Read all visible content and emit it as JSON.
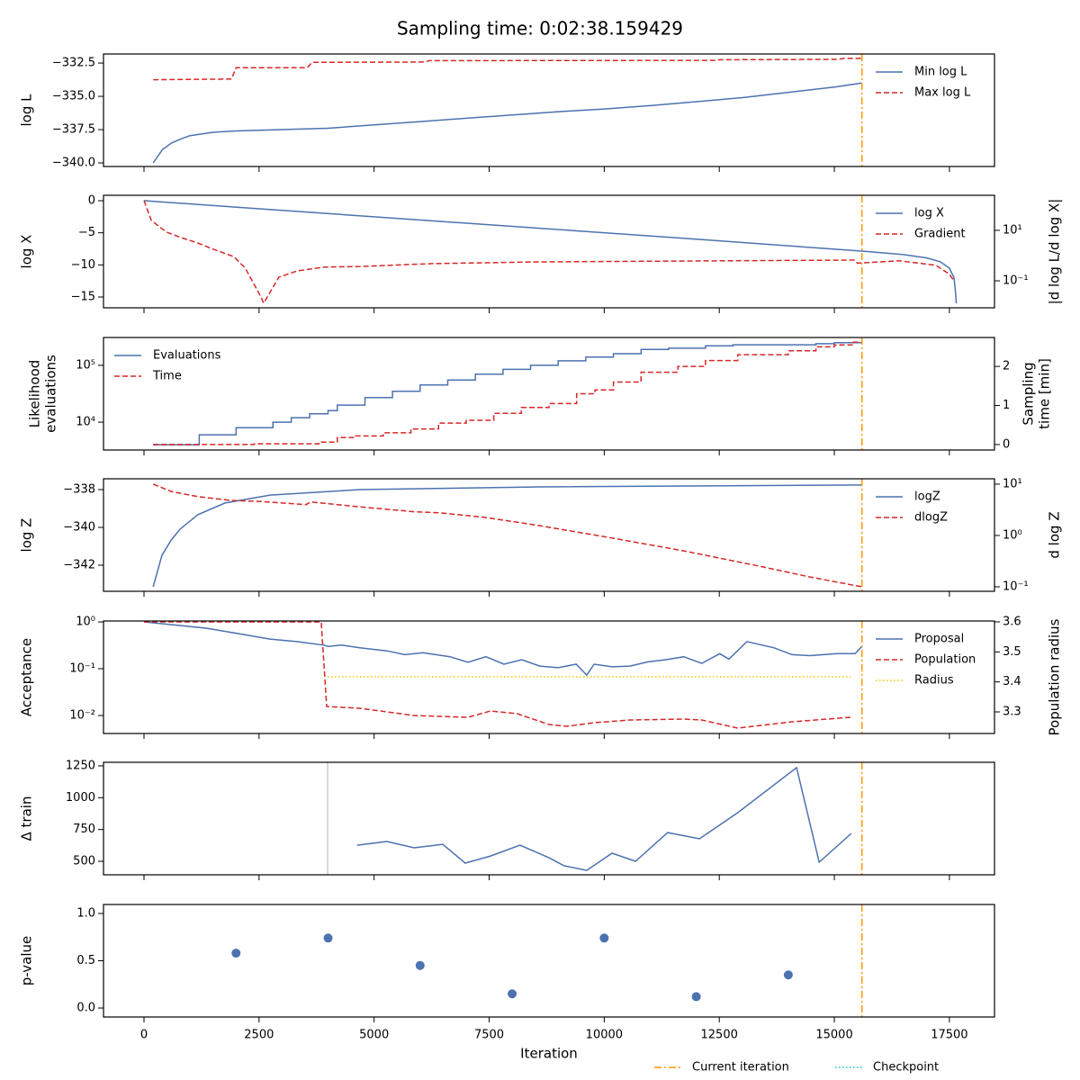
{
  "title": "Sampling time: 0:02:38.159429",
  "legend": [
    {
      "name": "Current iteration",
      "color": "#ff9900",
      "linestyle": "dashdot",
      "x": 15600
    },
    {
      "name": "Checkpoint",
      "color": "#17becf",
      "linestyle": "dotted"
    }
  ],
  "chart_data": [
    {
      "type": "line",
      "ylabel": [
        "log L"
      ],
      "legend": "upper right",
      "xlim": [
        -880,
        18480
      ],
      "xticks": [
        0,
        2500,
        5000,
        7500,
        10000,
        12500,
        15000,
        17500
      ],
      "ylim": [
        -340.27,
        -331.82
      ],
      "yticks": [
        {
          "value": -340,
          "label": "−340.0"
        },
        {
          "value": -337.5,
          "label": "−337.5"
        },
        {
          "value": -335,
          "label": "−335.0"
        },
        {
          "value": -332.5,
          "label": "−332.5"
        }
      ],
      "series": [
        {
          "name": "Min log L",
          "color": "#4c72b0",
          "linestyle": "solid",
          "x": [
            200,
            400,
            600,
            800,
            1000,
            1500,
            2000,
            3000,
            4000,
            5000,
            6000,
            7000,
            8000,
            9000,
            10000,
            11000,
            12000,
            13000,
            14000,
            15000,
            15600
          ],
          "values": [
            -340,
            -339.0,
            -338.5,
            -338.2,
            -337.95,
            -337.7,
            -337.6,
            -337.5,
            -337.4,
            -337.15,
            -336.9,
            -336.65,
            -336.4,
            -336.15,
            -335.95,
            -335.7,
            -335.4,
            -335.1,
            -334.7,
            -334.3,
            -334.0
          ]
        },
        {
          "name": "Max log L",
          "color": "#d62728",
          "linestyle": "dashed",
          "x": [
            200,
            1900,
            2000,
            3550,
            3650,
            6100,
            6200,
            12400,
            12500,
            15100,
            15200,
            15600
          ],
          "values": [
            -333.75,
            -333.7,
            -332.85,
            -332.85,
            -332.45,
            -332.42,
            -332.32,
            -332.3,
            -332.25,
            -332.22,
            -332.15,
            -332.15
          ]
        }
      ]
    },
    {
      "type": "line",
      "ylabel": [
        "log X"
      ],
      "y2label": [
        "|d log L/d log X|"
      ],
      "legend": "upper right",
      "xlim": [
        -880,
        18480
      ],
      "xticks": [
        0,
        2500,
        5000,
        7500,
        10000,
        12500,
        15000,
        17500
      ],
      "ylim": [
        -16.68,
        0.84
      ],
      "yticks": [
        {
          "value": -15,
          "label": "−15"
        },
        {
          "value": -10,
          "label": "−10"
        },
        {
          "value": -5,
          "label": "−5"
        },
        0
      ],
      "y2scale": "log",
      "y2lim": [
        0.0085,
        245
      ],
      "y2ticks": [
        {
          "value": 0.1,
          "label": "10⁻¹"
        },
        {
          "value": 10,
          "label": "10¹"
        }
      ],
      "series": [
        {
          "name": "log X",
          "color": "#4c72b0",
          "linestyle": "solid",
          "x": [
            0,
            4000,
            8000,
            12000,
            15600,
            16500,
            17000,
            17300,
            17500,
            17600,
            17630,
            17650
          ],
          "values": [
            0,
            -2.0,
            -4.0,
            -6.0,
            -7.85,
            -8.4,
            -8.9,
            -9.5,
            -10.5,
            -12,
            -14,
            -16
          ]
        },
        {
          "name": "Gradient",
          "color": "#d62728",
          "linestyle": "dashed",
          "axis": "y2",
          "x": [
            0,
            160,
            490,
            800,
            1170,
            1500,
            1950,
            2200,
            2540,
            2600,
            2930,
            3320,
            3910,
            4690,
            6260,
            8600,
            12510,
            15440,
            15500,
            16420,
            17210,
            17500,
            17600
          ],
          "values": [
            151,
            24.5,
            8.5,
            5.2,
            3.16,
            1.8,
            0.91,
            0.32,
            0.023,
            0.013,
            0.138,
            0.245,
            0.347,
            0.37,
            0.48,
            0.56,
            0.62,
            0.66,
            0.5,
            0.62,
            0.41,
            0.18,
            0.1
          ]
        }
      ]
    },
    {
      "type": "line",
      "ylabel": [
        "Likelihood",
        "evaluations"
      ],
      "y2label": [
        "Sampling",
        "time [min]"
      ],
      "legend": "upper left",
      "xlim": [
        -880,
        18480
      ],
      "xticks": [
        0,
        2500,
        5000,
        7500,
        10000,
        12500,
        15000,
        17500
      ],
      "yscale": "log",
      "ylim": [
        3236,
        309000
      ],
      "yticks": [
        {
          "value": 10000,
          "label": "10⁴"
        },
        {
          "value": 100000,
          "label": "10⁵"
        }
      ],
      "y2lim": [
        -0.14,
        2.74
      ],
      "y2ticks": [
        0,
        1,
        2
      ],
      "series": [
        {
          "name": "Evaluations",
          "color": "#4c72b0",
          "linestyle": "solid",
          "x": [
            200,
            1200,
            1200,
            2000,
            2000,
            2800,
            2800,
            3200,
            3200,
            3600,
            3600,
            4000,
            4000,
            4200,
            4200,
            4800,
            4800,
            5400,
            5400,
            6000,
            6000,
            6600,
            6600,
            7200,
            7200,
            7800,
            7800,
            8400,
            8400,
            9000,
            9000,
            9600,
            9600,
            10200,
            10200,
            10800,
            10800,
            11400,
            11400,
            12200,
            12200,
            12800,
            12800,
            14600,
            14600,
            15000,
            15000,
            15600
          ],
          "values": [
            4000,
            4000,
            6000,
            6000,
            8000,
            8000,
            10000,
            10000,
            12000,
            12000,
            14000,
            14000,
            16000,
            16000,
            20000,
            20000,
            27000,
            27000,
            35000,
            35000,
            45000,
            45000,
            55000,
            55000,
            70000,
            70000,
            85000,
            85000,
            100000,
            100000,
            120000,
            120000,
            140000,
            140000,
            160000,
            160000,
            190000,
            190000,
            200000,
            200000,
            220000,
            220000,
            230000,
            230000,
            240000,
            240000,
            250000,
            250000
          ]
        },
        {
          "name": "Time",
          "color": "#d62728",
          "linestyle": "dashed",
          "axis": "y2",
          "x": [
            200,
            2400,
            2400,
            3800,
            3800,
            4200,
            4200,
            4600,
            4600,
            5200,
            5200,
            5800,
            5800,
            6400,
            6400,
            7000,
            7000,
            7600,
            7600,
            8200,
            8200,
            8800,
            8800,
            9400,
            9400,
            9800,
            9800,
            10200,
            10200,
            10800,
            10800,
            11600,
            11600,
            12200,
            12200,
            12900,
            12900,
            14000,
            14000,
            14600,
            14600,
            15000,
            15000,
            15400,
            15400,
            15600
          ],
          "values": [
            0,
            0,
            0.02,
            0.02,
            0.06,
            0.06,
            0.18,
            0.18,
            0.22,
            0.22,
            0.3,
            0.3,
            0.4,
            0.4,
            0.55,
            0.55,
            0.62,
            0.62,
            0.8,
            0.8,
            0.95,
            0.95,
            1.05,
            1.05,
            1.3,
            1.3,
            1.4,
            1.4,
            1.6,
            1.6,
            1.85,
            1.85,
            2.0,
            2.0,
            2.15,
            2.15,
            2.3,
            2.3,
            2.4,
            2.4,
            2.5,
            2.5,
            2.55,
            2.55,
            2.62,
            2.62
          ]
        }
      ]
    },
    {
      "type": "line",
      "ylabel": [
        "log Z"
      ],
      "y2label": [
        "d log Z"
      ],
      "legend": "upper right",
      "xlim": [
        -880,
        18480
      ],
      "xticks": [
        0,
        2500,
        5000,
        7500,
        10000,
        12500,
        15000,
        17500
      ],
      "ylim": [
        -343.38,
        -337.43
      ],
      "yticks": [
        {
          "value": -342,
          "label": "−342"
        },
        {
          "value": -340,
          "label": "−340"
        },
        {
          "value": -338,
          "label": "−338"
        }
      ],
      "y2scale": "log",
      "y2lim": [
        0.0817,
        12.7
      ],
      "y2ticks": [
        {
          "value": 0.1,
          "label": "10⁻¹"
        },
        {
          "value": 1,
          "label": "10⁰"
        },
        {
          "value": 10,
          "label": "10¹"
        }
      ],
      "series": [
        {
          "name": "logZ",
          "color": "#4c72b0",
          "linestyle": "solid",
          "x": [
            200,
            390,
            590,
            780,
            1170,
            1760,
            2740,
            4690,
            8600,
            15600
          ],
          "values": [
            -343.14,
            -341.48,
            -340.67,
            -340.1,
            -339.33,
            -338.71,
            -338.29,
            -338.0,
            -337.86,
            -337.76
          ]
        },
        {
          "name": "dlogZ",
          "color": "#d62728",
          "linestyle": "dashed",
          "axis": "y2",
          "x": [
            200,
            590,
            1170,
            1900,
            2540,
            3520,
            3620,
            4690,
            5870,
            6450,
            7430,
            8600,
            10170,
            11730,
            13300,
            14470,
            15600
          ],
          "values": [
            10,
            7.2,
            5.7,
            4.8,
            4.6,
            3.98,
            4.5,
            3.6,
            2.9,
            2.75,
            2.24,
            1.55,
            0.89,
            0.5,
            0.26,
            0.155,
            0.1
          ]
        }
      ]
    },
    {
      "type": "line",
      "ylabel": [
        "Acceptance"
      ],
      "y2label": [
        "Population radius"
      ],
      "legend": "upper right",
      "xlim": [
        -880,
        18480
      ],
      "xticks": [
        0,
        2500,
        5000,
        7500,
        10000,
        12500,
        15000,
        17500
      ],
      "yscale": "log",
      "ylim": [
        0.00412,
        1.047
      ],
      "yticks": [
        {
          "value": 0.01,
          "label": "10⁻²"
        },
        {
          "value": 0.1,
          "label": "10⁻¹"
        },
        {
          "value": 1,
          "label": "10⁰"
        }
      ],
      "y2lim": [
        3.228,
        3.603
      ],
      "y2ticks": [
        3.3,
        3.4,
        3.5,
        3.6
      ],
      "series": [
        {
          "name": "Proposal",
          "color": "#4c72b0",
          "linestyle": "solid",
          "x": [
            0,
            780,
            1370,
            2150,
            2740,
            3320,
            3910,
            4000,
            4300,
            4690,
            5280,
            5670,
            6060,
            6650,
            7040,
            7430,
            7820,
            8210,
            8600,
            9000,
            9390,
            9620,
            9780,
            10170,
            10560,
            10950,
            11340,
            11730,
            12120,
            12510,
            12710,
            13100,
            13690,
            14080,
            14470,
            15060,
            15450,
            15600
          ],
          "values": [
            1,
            0.84,
            0.73,
            0.54,
            0.43,
            0.38,
            0.32,
            0.3,
            0.32,
            0.28,
            0.24,
            0.2,
            0.22,
            0.18,
            0.137,
            0.18,
            0.125,
            0.156,
            0.114,
            0.105,
            0.125,
            0.073,
            0.125,
            0.11,
            0.114,
            0.14,
            0.156,
            0.18,
            0.13,
            0.21,
            0.16,
            0.38,
            0.28,
            0.2,
            0.19,
            0.21,
            0.21,
            0.3
          ]
        },
        {
          "name": "Population",
          "color": "#d62728",
          "linestyle": "dashed",
          "axis": "y2",
          "x": [
            0,
            3850,
            3970,
            4690,
            5870,
            7040,
            7530,
            8110,
            8800,
            9190,
            9780,
            10560,
            11730,
            12120,
            12900,
            14080,
            15350
          ],
          "values": [
            3.6,
            3.6,
            3.318,
            3.312,
            3.288,
            3.282,
            3.303,
            3.294,
            3.258,
            3.252,
            3.264,
            3.273,
            3.276,
            3.273,
            3.246,
            3.267,
            3.282
          ]
        },
        {
          "name": "Radius",
          "color": "#f2c500",
          "linestyle": "dotted",
          "axis": "y2",
          "x": [
            3990,
            15350
          ],
          "values": [
            3.417,
            3.417
          ]
        }
      ]
    },
    {
      "type": "line",
      "ylabel": [
        "Δ train"
      ],
      "xlim": [
        -880,
        18480
      ],
      "xticks": [
        0,
        2500,
        5000,
        7500,
        10000,
        12500,
        15000,
        17500
      ],
      "ylim": [
        394,
        1278
      ],
      "yticks": [
        500,
        750,
        1000,
        1250
      ],
      "vlines": [
        {
          "x": 3990,
          "color": "#cccccc"
        }
      ],
      "series": [
        {
          "color": "#4c72b0",
          "linestyle": "solid",
          "x": [
            4630,
            5280,
            5870,
            6490,
            6980,
            7530,
            8170,
            8800,
            9130,
            9620,
            10170,
            10680,
            11380,
            12070,
            12900,
            14180,
            14670,
            15370
          ],
          "values": [
            627,
            656,
            606,
            634,
            486,
            542,
            627,
            528,
            465,
            429,
            564,
            500,
            726,
            677,
            882,
            1236,
            493,
            719
          ]
        }
      ]
    },
    {
      "type": "scatter",
      "ylabel": [
        "p-value"
      ],
      "xlabel": "Iteration",
      "show_xticklabels": true,
      "xlim": [
        -880,
        18480
      ],
      "xticks": [
        0,
        2500,
        5000,
        7500,
        10000,
        12500,
        15000,
        17500
      ],
      "ylim": [
        -0.095,
        1.095
      ],
      "yticks": [
        {
          "value": 0,
          "label": "0.0"
        },
        0.5,
        {
          "value": 1,
          "label": "1.0"
        }
      ],
      "series": [
        {
          "color": "#4c72b0",
          "x": [
            2000,
            4000,
            6000,
            8000,
            10000,
            12000,
            14000
          ],
          "values": [
            0.58,
            0.74,
            0.45,
            0.15,
            0.74,
            0.12,
            0.35
          ]
        }
      ]
    }
  ]
}
